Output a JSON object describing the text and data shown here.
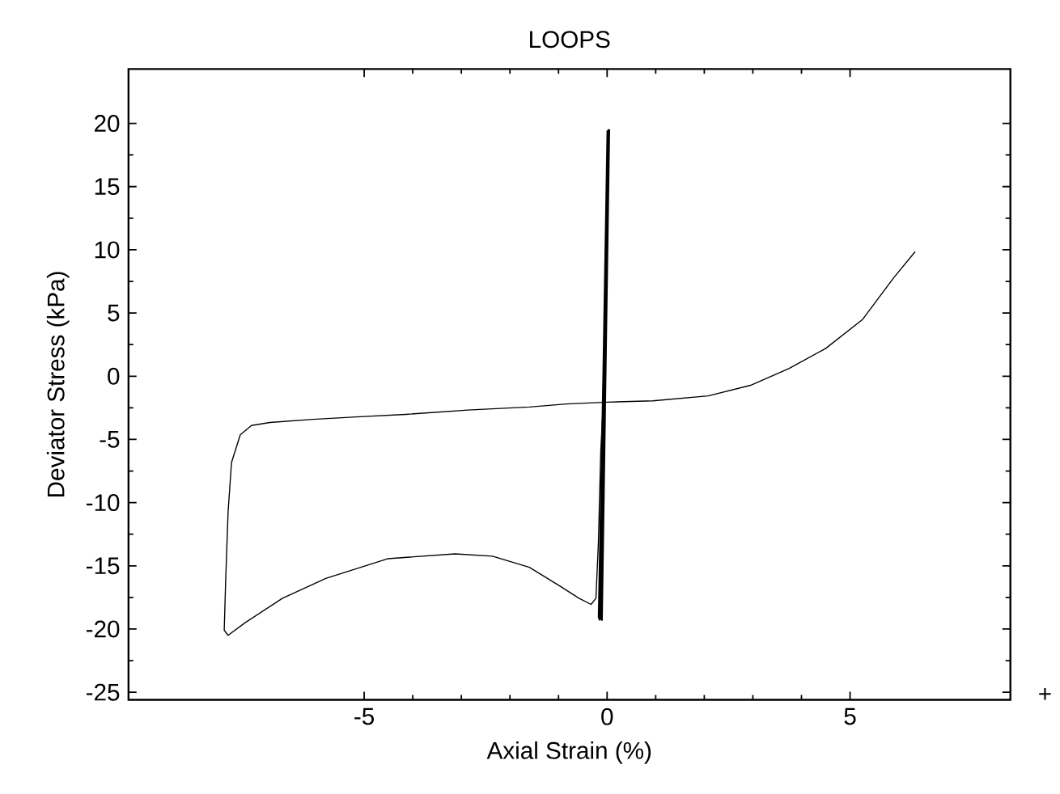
{
  "chart_data": {
    "type": "line",
    "title": "LOOPS",
    "xlabel": "Axial Strain (%)",
    "ylabel": "Deviator Stress (kPa)",
    "xlim": [
      -9.85,
      8.3
    ],
    "ylim": [
      -25.6,
      24.3
    ],
    "xticks": [
      -5,
      0,
      5
    ],
    "yticks": [
      -25,
      -20,
      -15,
      -10,
      -5,
      0,
      5,
      10,
      15,
      20
    ],
    "annotations": [
      "+"
    ],
    "series": [
      {
        "color": "#000000",
        "x": [
          -0.15,
          0.02,
          -0.17,
          0.0,
          -0.12,
          0.04,
          -0.18,
          0.01,
          -0.1,
          0.05,
          -0.14,
          0.03,
          -0.16,
          0.02,
          -0.11,
          0.04
        ],
        "values": [
          -19.3,
          19.5,
          -19.2,
          19.4,
          -19.3,
          19.5,
          -19.1,
          19.3,
          -19.3,
          19.5,
          -19.2,
          19.4,
          -19.3,
          19.5,
          -19.2,
          19.4
        ]
      },
      {
        "color": "#000000",
        "x": [
          6.34,
          5.9,
          5.26,
          4.5,
          3.74,
          2.97,
          2.08,
          0.94,
          0,
          -0.84,
          -1.6,
          -2.87,
          -4.14,
          -5.16,
          -6.05,
          -6.94,
          -7.32,
          -7.55,
          -7.73,
          -7.8,
          -7.85,
          -7.88,
          -7.8,
          -7.45,
          -6.68,
          -5.79,
          -4.52,
          -3.13,
          -2.36,
          -1.6,
          -0.97,
          -0.58,
          -0.33,
          -0.23,
          -0.18,
          -0.13,
          -0.08
        ],
        "values": [
          9.85,
          7.8,
          4.5,
          2.2,
          0.6,
          -0.7,
          -1.56,
          -1.95,
          -2.05,
          -2.2,
          -2.44,
          -2.68,
          -3.02,
          -3.22,
          -3.41,
          -3.66,
          -3.9,
          -4.63,
          -6.83,
          -10.7,
          -16.1,
          -20.1,
          -20.5,
          -19.5,
          -17.56,
          -16.0,
          -14.44,
          -14.05,
          -14.24,
          -15.12,
          -16.6,
          -17.56,
          -18.05,
          -17.56,
          -13.2,
          -5.85,
          -2.2
        ]
      }
    ]
  }
}
